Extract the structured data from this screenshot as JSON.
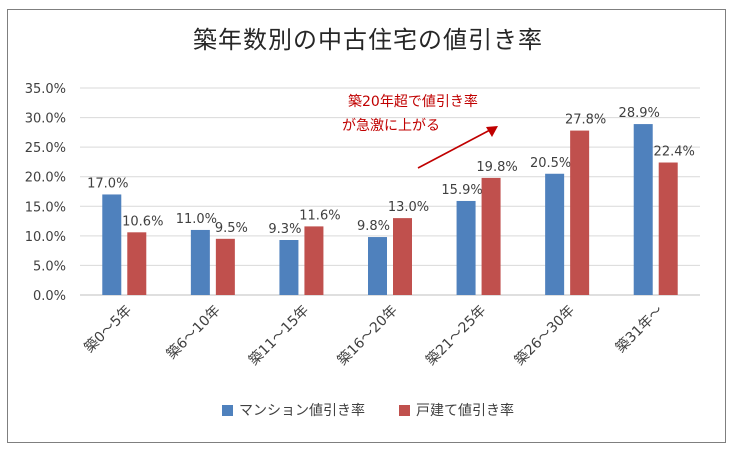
{
  "chart_data": {
    "type": "bar",
    "title": "築年数別の中古住宅の値引き率",
    "categories": [
      "築0～5年",
      "築6～10年",
      "築11～15年",
      "築16～20年",
      "築21～25年",
      "築26～30年",
      "築31年～"
    ],
    "series": [
      {
        "name": "マンション値引き率",
        "color": "#4f81bd",
        "values": [
          17.0,
          11.0,
          9.3,
          9.8,
          15.9,
          20.5,
          28.9
        ],
        "labels": [
          "17.0%",
          "11.0%",
          "9.3%",
          "9.8%",
          "15.9%",
          "20.5%",
          "28.9%"
        ]
      },
      {
        "name": "戸建て値引き率",
        "color": "#c0504d",
        "values": [
          10.6,
          9.5,
          11.6,
          13.0,
          19.8,
          27.8,
          22.4
        ],
        "labels": [
          "10.6%",
          "9.5%",
          "11.6%",
          "13.0%",
          "19.8%",
          "27.8%",
          "22.4%"
        ]
      }
    ],
    "ylim": [
      0,
      35
    ],
    "yticks": [
      0,
      5,
      10,
      15,
      20,
      25,
      30,
      35
    ],
    "ytick_labels": [
      "0.0%",
      "5.0%",
      "10.0%",
      "15.0%",
      "20.0%",
      "25.0%",
      "30.0%",
      "35.0%"
    ],
    "grid": true,
    "legend_position": "bottom",
    "annotation": {
      "lines": [
        "築20年超で値引き率",
        "が急激に上がる"
      ],
      "color": "#c00000"
    }
  }
}
